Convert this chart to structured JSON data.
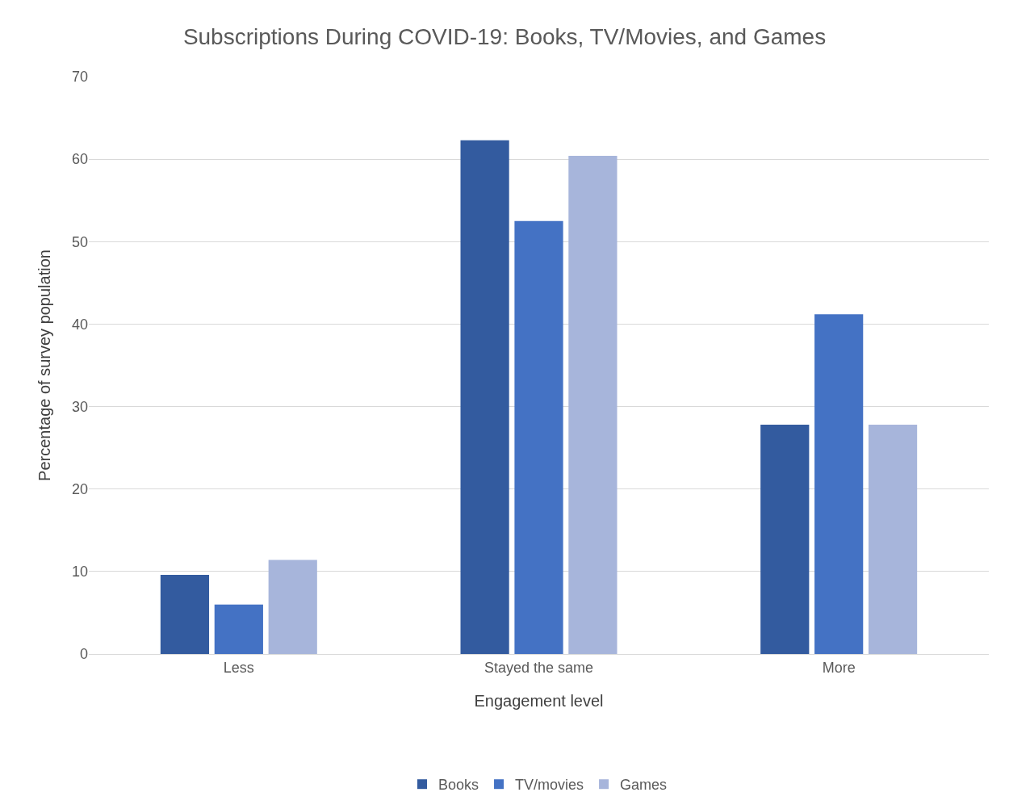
{
  "chart_data": {
    "type": "bar",
    "title": "Subscriptions During COVID-19: Books, TV/Movies, and Games",
    "xlabel": "Engagement level",
    "ylabel": "Percentage of survey population",
    "categories": [
      "Less",
      "Stayed the same",
      "More"
    ],
    "series": [
      {
        "name": "Books",
        "color": "#335b9f",
        "values": [
          9.6,
          62.3,
          27.8
        ]
      },
      {
        "name": "TV/movies",
        "color": "#4472c4",
        "values": [
          6.0,
          52.5,
          41.2
        ]
      },
      {
        "name": "Games",
        "color": "#a7b5db",
        "values": [
          11.4,
          60.4,
          27.8
        ]
      }
    ],
    "ylim": [
      0,
      70
    ],
    "yticks": [
      0,
      10,
      20,
      30,
      40,
      50,
      60,
      70
    ],
    "grid": "y",
    "legend": "bottom"
  }
}
